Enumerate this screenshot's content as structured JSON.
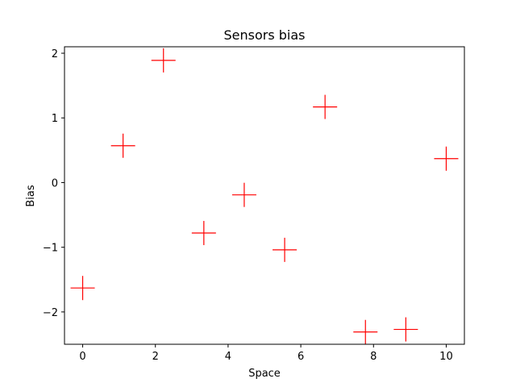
{
  "chart_data": {
    "type": "scatter",
    "title": "Sensors bias",
    "xlabel": "Space",
    "ylabel": "Bias",
    "xlim": [
      -0.5,
      10.5
    ],
    "ylim": [
      -2.5,
      2.1
    ],
    "xticks": [
      0,
      2,
      4,
      6,
      8,
      10
    ],
    "yticks": [
      -2,
      -1,
      0,
      1,
      2
    ],
    "xtick_labels": [
      "0",
      "2",
      "4",
      "6",
      "8",
      "10"
    ],
    "ytick_labels": [
      "−2",
      "−1",
      "0",
      "1",
      "2"
    ],
    "grid": false,
    "marker": "+",
    "color": "#ff0000",
    "series": [
      {
        "x": [
          0,
          1.111,
          2.222,
          3.333,
          4.444,
          5.556,
          6.667,
          7.778,
          8.889,
          10
        ],
        "y": [
          -1.63,
          0.57,
          1.89,
          -0.78,
          -0.19,
          -1.04,
          1.17,
          -2.31,
          -2.27,
          0.37
        ]
      }
    ]
  }
}
